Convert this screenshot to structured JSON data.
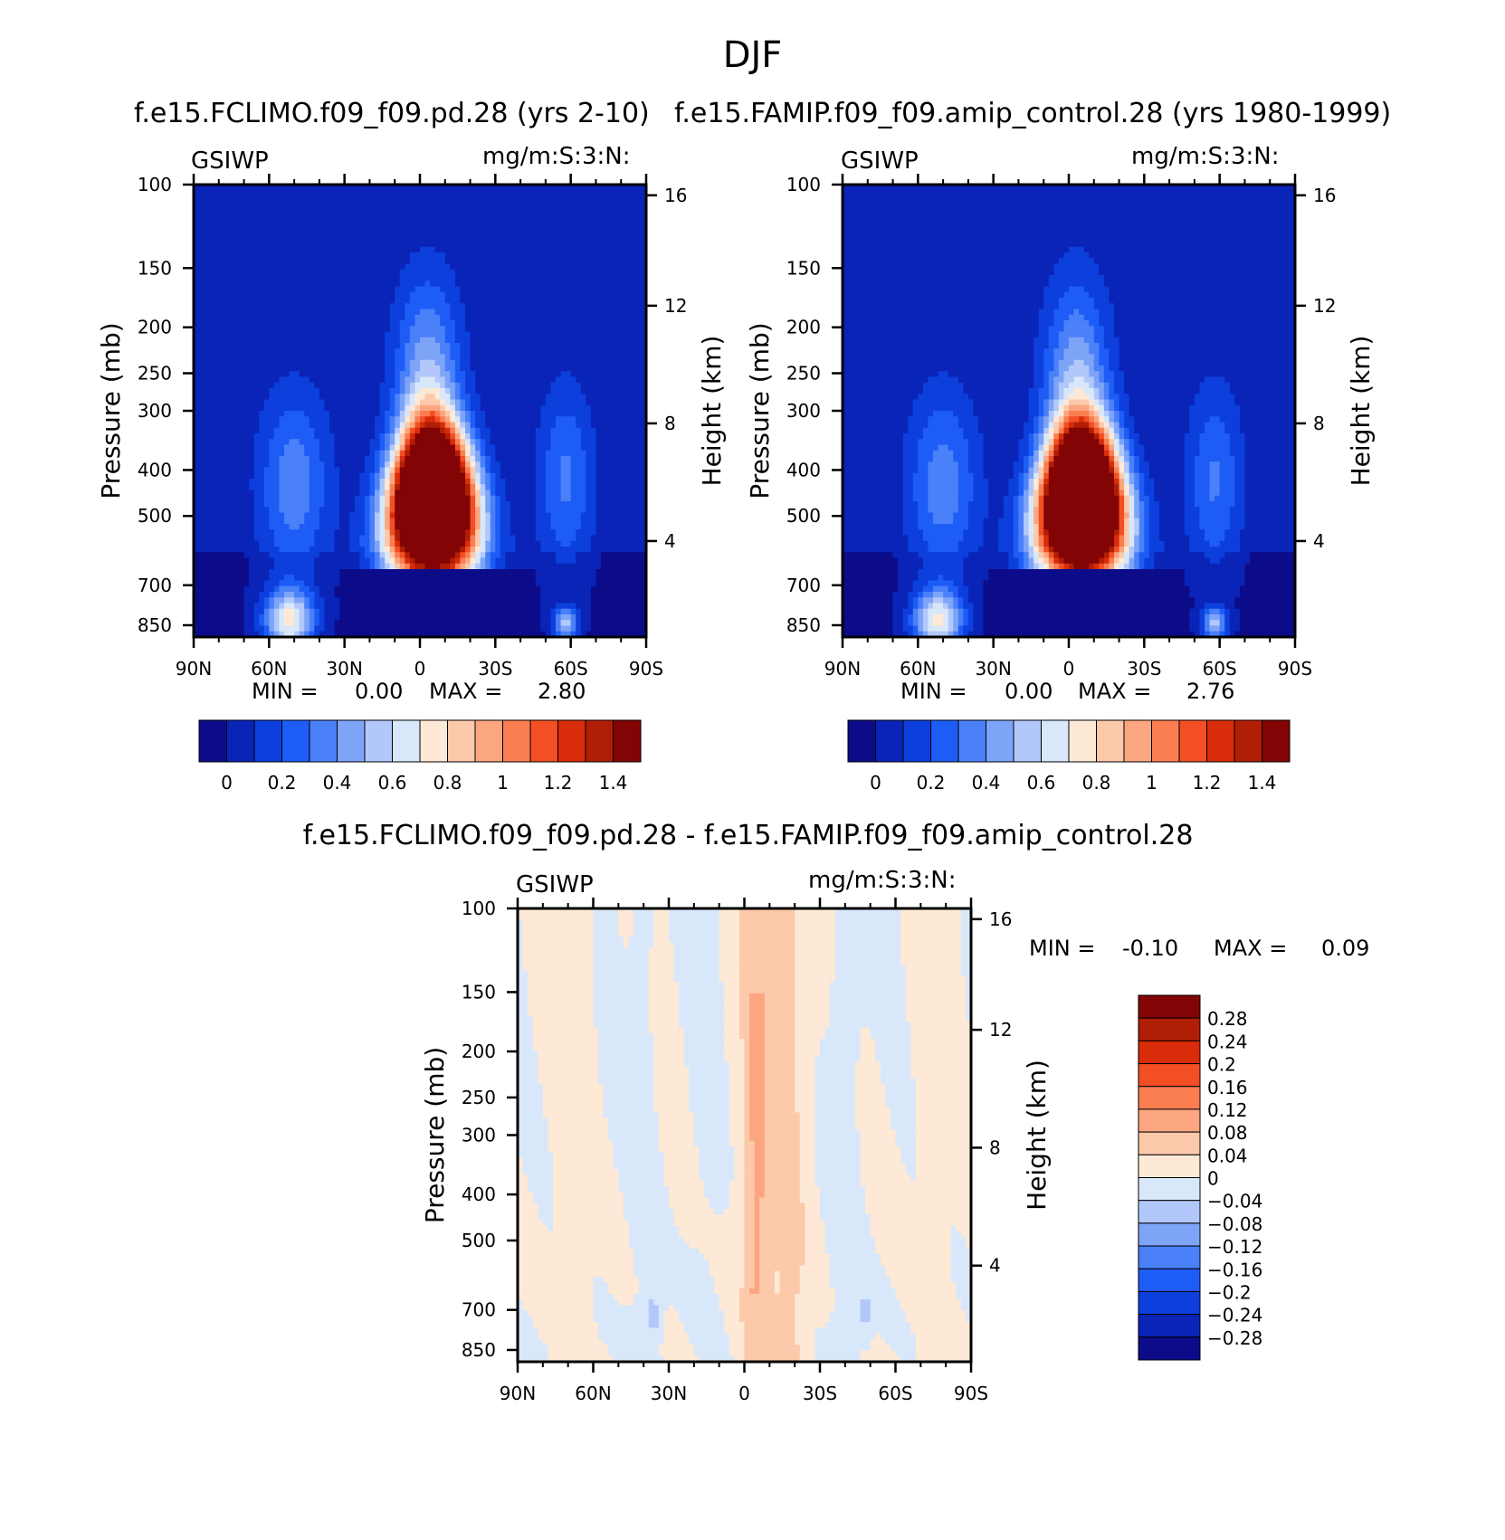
{
  "figure_title": "DJF",
  "panels": {
    "top_left": {
      "title": "f.e15.FCLIMO.f09_f09.pd.28 (yrs 2-10)",
      "variable": "GSIWP",
      "units": "mg/m:S:3:N:",
      "min_label": "MIN =",
      "min_value": "0.00",
      "max_label": "MAX =",
      "max_value": "2.80"
    },
    "top_right": {
      "title": "f.e15.FAMIP.f09_f09.amip_control.28 (yrs 1980-1999)",
      "variable": "GSIWP",
      "units": "mg/m:S:3:N:",
      "min_label": "MIN =",
      "min_value": "0.00",
      "max_label": "MAX =",
      "max_value": "2.76"
    },
    "bottom": {
      "title": "f.e15.FCLIMO.f09_f09.pd.28 - f.e15.FAMIP.f09_f09.amip_control.28",
      "variable": "GSIWP",
      "units": "mg/m:S:3:N:",
      "min_label": "MIN =",
      "min_value": "-0.10",
      "max_label": "MAX =",
      "max_value": "0.09"
    }
  },
  "chart_data": [
    {
      "type": "heatmap",
      "title": "f.e15.FCLIMO.f09_f09.pd.28 (yrs 2-10)",
      "xlabel": "",
      "ylabel": "Pressure (mb)",
      "y2label": "Height (km)",
      "x_ticks": [
        "90N",
        "60N",
        "30N",
        "0",
        "30S",
        "60S",
        "90S"
      ],
      "x_range": [
        90,
        -90
      ],
      "y_ticks": [
        100,
        150,
        200,
        250,
        300,
        400,
        500,
        700,
        850
      ],
      "y_range": [
        100,
        900
      ],
      "y_scale": "log",
      "y2_ticks": [
        4,
        8,
        12,
        16
      ],
      "colorbar_levels": [
        "0",
        "0.2",
        "0.4",
        "0.6",
        "0.8",
        "1",
        "1.2",
        "1.4"
      ],
      "colorbar_colors": [
        "#0c0c8a",
        "#0a24b8",
        "#0c3fdc",
        "#1e5cf6",
        "#4a80f8",
        "#7ea4f8",
        "#b2c8fa",
        "#d8e8fa",
        "#fde9d6",
        "#fcc9aa",
        "#fba680",
        "#fa7e52",
        "#f34f24",
        "#d82c0a",
        "#b01e06",
        "#820404"
      ],
      "min": 0.0,
      "max": 2.8
    },
    {
      "type": "heatmap",
      "title": "f.e15.FAMIP.f09_f09.amip_control.28 (yrs 1980-1999)",
      "xlabel": "",
      "ylabel": "Pressure (mb)",
      "y2label": "Height (km)",
      "x_ticks": [
        "90N",
        "60N",
        "30N",
        "0",
        "30S",
        "60S",
        "90S"
      ],
      "x_range": [
        90,
        -90
      ],
      "y_ticks": [
        100,
        150,
        200,
        250,
        300,
        400,
        500,
        700,
        850
      ],
      "y_range": [
        100,
        900
      ],
      "y_scale": "log",
      "y2_ticks": [
        4,
        8,
        12,
        16
      ],
      "colorbar_levels": [
        "0",
        "0.2",
        "0.4",
        "0.6",
        "0.8",
        "1",
        "1.2",
        "1.4"
      ],
      "colorbar_colors": [
        "#0c0c8a",
        "#0a24b8",
        "#0c3fdc",
        "#1e5cf6",
        "#4a80f8",
        "#7ea4f8",
        "#b2c8fa",
        "#d8e8fa",
        "#fde9d6",
        "#fcc9aa",
        "#fba680",
        "#fa7e52",
        "#f34f24",
        "#d82c0a",
        "#b01e06",
        "#820404"
      ],
      "min": 0.0,
      "max": 2.76
    },
    {
      "type": "heatmap",
      "title": "f.e15.FCLIMO.f09_f09.pd.28 - f.e15.FAMIP.f09_f09.amip_control.28",
      "xlabel": "",
      "ylabel": "Pressure (mb)",
      "y2label": "Height (km)",
      "x_ticks": [
        "90N",
        "60N",
        "30N",
        "0",
        "30S",
        "60S",
        "90S"
      ],
      "x_range": [
        90,
        -90
      ],
      "y_ticks": [
        100,
        150,
        200,
        250,
        300,
        400,
        500,
        700,
        850
      ],
      "y_range": [
        100,
        900
      ],
      "y_scale": "log",
      "y2_ticks": [
        4,
        8,
        12,
        16
      ],
      "colorbar_levels": [
        "0.28",
        "0.24",
        "0.2",
        "0.16",
        "0.12",
        "0.08",
        "0.04",
        "0",
        "-0.04",
        "-0.08",
        "-0.12",
        "-0.16",
        "-0.2",
        "-0.24",
        "-0.28"
      ],
      "colorbar_colors": [
        "#820404",
        "#b01e06",
        "#d82c0a",
        "#f34f24",
        "#fa7e52",
        "#fba680",
        "#fcc9aa",
        "#fde9d6",
        "#d8e8fa",
        "#b2c8fa",
        "#7ea4f8",
        "#4a80f8",
        "#1e5cf6",
        "#0c3fdc",
        "#0a24b8",
        "#0c0c8a"
      ],
      "min": -0.1,
      "max": 0.09
    }
  ]
}
